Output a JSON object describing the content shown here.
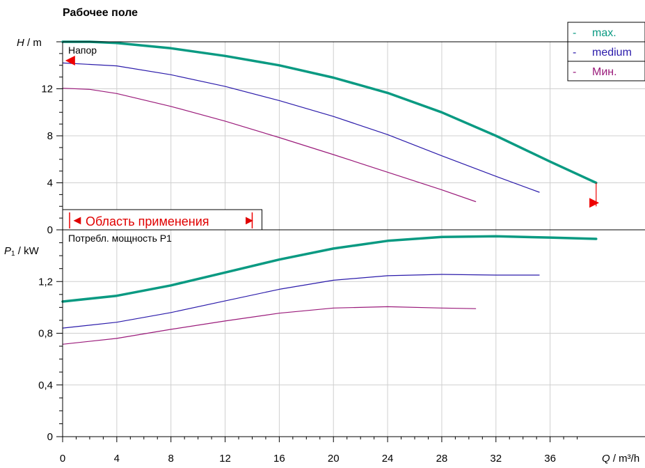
{
  "title": "Рабочее поле",
  "chart_data": {
    "type": "line",
    "x_axis": {
      "label_var": "Q",
      "label_unit": "m³/h",
      "range": [
        0,
        38
      ],
      "ticks": [
        0,
        4,
        8,
        12,
        16,
        20,
        24,
        28,
        32,
        36
      ],
      "tick_labels": [
        "0",
        "4",
        "8",
        "12",
        "16",
        "20",
        "24",
        "28",
        "32",
        "36"
      ]
    },
    "panels": [
      {
        "name": "head",
        "caption": "Напор",
        "y_label_var": "H",
        "y_label_unit": "m",
        "y_range": [
          0,
          16
        ],
        "y_ticks": [
          0,
          4,
          8,
          12,
          16
        ],
        "y_tick_labels": [
          "0",
          "4",
          "8",
          "12",
          ""
        ],
        "grid": true,
        "series": [
          {
            "name": "max.",
            "color": "#0a9a82",
            "width": 3.5,
            "x": [
              0,
              2,
              4,
              8,
              12,
              16,
              20,
              24,
              28,
              32,
              36,
              39.4
            ],
            "y": [
              16.0,
              16.0,
              15.9,
              15.45,
              14.8,
              14.0,
              12.95,
              11.65,
              10.0,
              8.0,
              5.8,
              4.0
            ]
          },
          {
            "name": "medium",
            "color": "#2a1aaa",
            "width": 1.2,
            "x": [
              0,
              4,
              8,
              12,
              16,
              20,
              24,
              28,
              32,
              35.2
            ],
            "y": [
              14.2,
              13.95,
              13.2,
              12.2,
              11.0,
              9.65,
              8.1,
              6.3,
              4.55,
              3.2
            ]
          },
          {
            "name": "Мин.",
            "color": "#9a1a7a",
            "width": 1.2,
            "x": [
              0,
              2,
              4,
              8,
              12,
              16,
              20,
              24,
              28,
              30.5
            ],
            "y": [
              12.05,
              11.95,
              11.6,
              10.5,
              9.25,
              7.85,
              6.4,
              4.9,
              3.4,
              2.4
            ]
          }
        ],
        "markers": [
          {
            "type": "triangle-left",
            "color": "#ee0000",
            "x": 0.3,
            "y": 14.4
          },
          {
            "type": "triangle-right",
            "color": "#ee0000",
            "x": 38.9,
            "y": 2.3
          }
        ],
        "drops": [
          {
            "color": "#ee0000",
            "x": 39.4,
            "y_top": 4.0,
            "y_bottom": 2.0
          }
        ]
      },
      {
        "name": "power",
        "caption": "Потребл. мощность P1",
        "y_label_var": "P",
        "y_label_sub": "1",
        "y_label_unit": "kW",
        "y_range": [
          0,
          1.6
        ],
        "y_ticks": [
          0,
          0.4,
          0.8,
          1.2,
          1.6
        ],
        "y_tick_labels": [
          "0",
          "0,4",
          "0,8",
          "1,2",
          ""
        ],
        "grid": true,
        "series": [
          {
            "name": "max.",
            "color": "#0a9a82",
            "width": 3.5,
            "x": [
              0,
              4,
              8,
              12,
              16,
              20,
              24,
              28,
              32,
              36,
              39.4
            ],
            "y": [
              1.045,
              1.09,
              1.17,
              1.27,
              1.37,
              1.455,
              1.515,
              1.545,
              1.55,
              1.54,
              1.53
            ]
          },
          {
            "name": "medium",
            "color": "#2a1aaa",
            "width": 1.2,
            "x": [
              0,
              4,
              8,
              12,
              16,
              20,
              24,
              28,
              32,
              35.2
            ],
            "y": [
              0.84,
              0.885,
              0.96,
              1.05,
              1.14,
              1.21,
              1.245,
              1.255,
              1.25,
              1.25
            ]
          },
          {
            "name": "Мин.",
            "color": "#9a1a7a",
            "width": 1.2,
            "x": [
              0,
              4,
              8,
              12,
              16,
              20,
              24,
              28,
              30.5
            ],
            "y": [
              0.715,
              0.76,
              0.83,
              0.895,
              0.955,
              0.995,
              1.005,
              0.995,
              0.99
            ]
          }
        ]
      }
    ],
    "legend": {
      "placement": "top-right",
      "entries": [
        {
          "dash": "-",
          "label": "max.",
          "color": "#0a9a82"
        },
        {
          "dash": "-",
          "label": "medium",
          "color": "#2a1aaa"
        },
        {
          "dash": "-",
          "label": "Мин.",
          "color": "#9a1a7a"
        }
      ]
    },
    "application_range": {
      "label": "Область применения",
      "color": "#ee0000",
      "x_range": [
        0,
        14.0
      ],
      "arrow_left": "◄",
      "arrow_right": "►"
    }
  }
}
